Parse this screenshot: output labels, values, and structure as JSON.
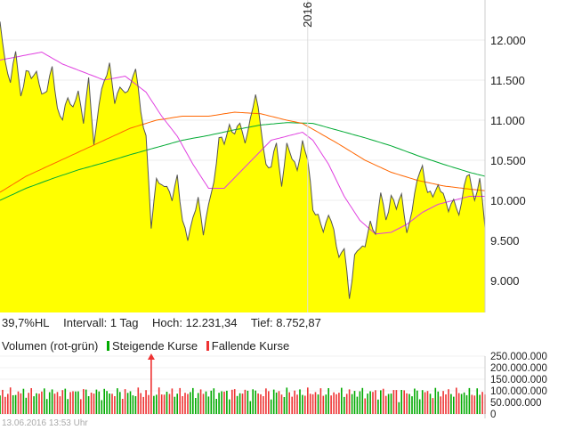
{
  "info": {
    "range": "39,7%HL",
    "interval": "Intervall: 1 Tag",
    "high": "Hoch:  12.231,34",
    "low": "Tief:  8.752,87"
  },
  "legend": {
    "volume": "Volumen (rot-grün)",
    "rising": "Steigende Kurse",
    "falling": "Fallende Kurse"
  },
  "timestamp": "13.06.2016 13:53 Uhr",
  "colors": {
    "area": "#ffff00",
    "price_line": "#555555",
    "ma_short": "#e040e0",
    "ma_mid": "#ff6600",
    "ma_long": "#00aa33",
    "rising": "#00aa00",
    "falling": "#ee3333"
  },
  "chart_data": [
    {
      "type": "area",
      "ylim": [
        8600,
        12500
      ],
      "yticks": [
        "12.000",
        "11.500",
        "11.000",
        "10.500",
        "10.000",
        "9.500",
        "9.000"
      ],
      "ytick_values": [
        12000,
        11500,
        11000,
        10500,
        10000,
        9500,
        9000
      ],
      "x_marker": "2016",
      "n_days": 187,
      "marker_index": 118,
      "price": [
        [
          0,
          12230
        ],
        [
          2,
          11700
        ],
        [
          4,
          11500
        ],
        [
          6,
          11850
        ],
        [
          8,
          11300
        ],
        [
          10,
          11600
        ],
        [
          12,
          11550
        ],
        [
          14,
          11600
        ],
        [
          16,
          11300
        ],
        [
          18,
          11400
        ],
        [
          20,
          11650
        ],
        [
          22,
          11150
        ],
        [
          24,
          11000
        ],
        [
          26,
          11300
        ],
        [
          28,
          11150
        ],
        [
          30,
          11350
        ],
        [
          32,
          11000
        ],
        [
          34,
          11500
        ],
        [
          36,
          10700
        ],
        [
          38,
          11200
        ],
        [
          40,
          11500
        ],
        [
          42,
          11700
        ],
        [
          44,
          11200
        ],
        [
          46,
          11450
        ],
        [
          48,
          11300
        ],
        [
          50,
          11450
        ],
        [
          52,
          11650
        ],
        [
          54,
          11100
        ],
        [
          56,
          10800
        ],
        [
          58,
          9650
        ],
        [
          60,
          10300
        ],
        [
          62,
          10150
        ],
        [
          64,
          10200
        ],
        [
          66,
          10000
        ],
        [
          68,
          10300
        ],
        [
          70,
          9750
        ],
        [
          72,
          9500
        ],
        [
          74,
          9800
        ],
        [
          76,
          10000
        ],
        [
          78,
          9600
        ],
        [
          80,
          9950
        ],
        [
          82,
          10200
        ],
        [
          84,
          10800
        ],
        [
          86,
          10700
        ],
        [
          88,
          10950
        ],
        [
          90,
          10800
        ],
        [
          92,
          11000
        ],
        [
          94,
          10700
        ],
        [
          96,
          11000
        ],
        [
          98,
          11350
        ],
        [
          100,
          10900
        ],
        [
          102,
          10450
        ],
        [
          104,
          10400
        ],
        [
          106,
          10750
        ],
        [
          108,
          10150
        ],
        [
          110,
          10700
        ],
        [
          112,
          10550
        ],
        [
          114,
          10350
        ],
        [
          116,
          10750
        ],
        [
          118,
          10500
        ],
        [
          120,
          9900
        ],
        [
          122,
          9800
        ],
        [
          124,
          9600
        ],
        [
          126,
          9850
        ],
        [
          128,
          9600
        ],
        [
          130,
          9300
        ],
        [
          132,
          9400
        ],
        [
          134,
          8780
        ],
        [
          136,
          9300
        ],
        [
          138,
          9400
        ],
        [
          140,
          9450
        ],
        [
          142,
          9700
        ],
        [
          144,
          9600
        ],
        [
          146,
          10100
        ],
        [
          148,
          9750
        ],
        [
          150,
          10050
        ],
        [
          152,
          9900
        ],
        [
          154,
          10100
        ],
        [
          156,
          9550
        ],
        [
          158,
          9900
        ],
        [
          160,
          10250
        ],
        [
          162,
          10420
        ],
        [
          164,
          10100
        ],
        [
          166,
          10050
        ],
        [
          168,
          10200
        ],
        [
          170,
          10050
        ],
        [
          172,
          9900
        ],
        [
          174,
          10000
        ],
        [
          176,
          9800
        ],
        [
          178,
          10200
        ],
        [
          180,
          10320
        ],
        [
          182,
          10000
        ],
        [
          184,
          10250
        ],
        [
          186,
          9700
        ]
      ],
      "ma_short": [
        [
          0,
          11750
        ],
        [
          8,
          11800
        ],
        [
          16,
          11850
        ],
        [
          24,
          11700
        ],
        [
          32,
          11600
        ],
        [
          40,
          11500
        ],
        [
          48,
          11550
        ],
        [
          56,
          11350
        ],
        [
          62,
          11050
        ],
        [
          68,
          10800
        ],
        [
          74,
          10450
        ],
        [
          80,
          10150
        ],
        [
          86,
          10150
        ],
        [
          92,
          10350
        ],
        [
          98,
          10550
        ],
        [
          104,
          10750
        ],
        [
          110,
          10800
        ],
        [
          116,
          10850
        ],
        [
          120,
          10750
        ],
        [
          126,
          10450
        ],
        [
          132,
          10050
        ],
        [
          138,
          9750
        ],
        [
          144,
          9580
        ],
        [
          150,
          9600
        ],
        [
          156,
          9700
        ],
        [
          162,
          9850
        ],
        [
          168,
          9950
        ],
        [
          174,
          10000
        ],
        [
          180,
          10050
        ],
        [
          186,
          10050
        ]
      ],
      "ma_mid": [
        [
          0,
          10100
        ],
        [
          10,
          10300
        ],
        [
          20,
          10450
        ],
        [
          30,
          10600
        ],
        [
          40,
          10750
        ],
        [
          50,
          10900
        ],
        [
          60,
          11000
        ],
        [
          70,
          11050
        ],
        [
          80,
          11050
        ],
        [
          90,
          11100
        ],
        [
          100,
          11080
        ],
        [
          110,
          11000
        ],
        [
          116,
          10960
        ],
        [
          122,
          10850
        ],
        [
          130,
          10700
        ],
        [
          140,
          10500
        ],
        [
          150,
          10350
        ],
        [
          160,
          10250
        ],
        [
          170,
          10180
        ],
        [
          180,
          10140
        ],
        [
          186,
          10120
        ]
      ],
      "ma_long": [
        [
          0,
          10000
        ],
        [
          10,
          10150
        ],
        [
          20,
          10270
        ],
        [
          30,
          10380
        ],
        [
          40,
          10470
        ],
        [
          50,
          10570
        ],
        [
          60,
          10660
        ],
        [
          70,
          10750
        ],
        [
          80,
          10810
        ],
        [
          90,
          10880
        ],
        [
          100,
          10940
        ],
        [
          110,
          10970
        ],
        [
          120,
          10960
        ],
        [
          130,
          10870
        ],
        [
          140,
          10780
        ],
        [
          150,
          10680
        ],
        [
          160,
          10560
        ],
        [
          170,
          10450
        ],
        [
          180,
          10350
        ],
        [
          186,
          10300
        ]
      ]
    },
    {
      "type": "bar",
      "ylim": [
        0,
        250000000
      ],
      "yticks": [
        "250.000.000",
        "200.000.000",
        "150.000.000",
        "100.000.000",
        "50.000.000",
        "0"
      ],
      "ytick_values": [
        250000000,
        200000000,
        150000000,
        100000000,
        50000000,
        0
      ],
      "n_days": 187,
      "peak_index": 58,
      "peak_value": 240000000
    }
  ]
}
